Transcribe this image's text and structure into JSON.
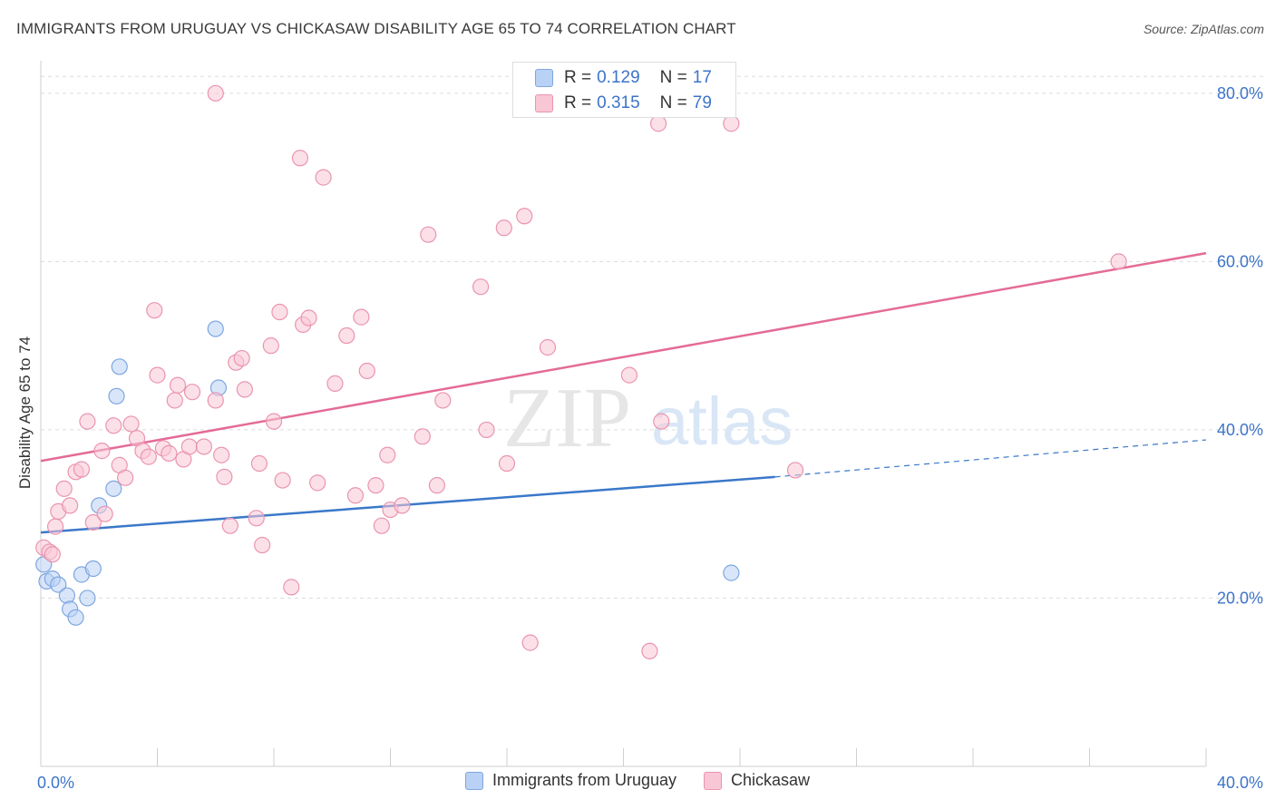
{
  "title": "IMMIGRANTS FROM URUGUAY VS CHICKASAW DISABILITY AGE 65 TO 74 CORRELATION CHART",
  "source": "Source: ZipAtlas.com",
  "watermark": {
    "zip": "ZIP",
    "atlas": "atlas"
  },
  "stats": [
    {
      "r_label": "R =",
      "r_value": "0.129",
      "n_label": "N =",
      "n_value": "17",
      "color": "#7ea6e0"
    },
    {
      "r_label": "R =",
      "r_value": "0.315",
      "n_label": "N =",
      "n_value": "79",
      "color": "#ea94b0"
    }
  ],
  "chart_data": {
    "type": "scatter",
    "xlabel": "",
    "ylabel": "Disability Age 65 to 74",
    "xlim": [
      0,
      40
    ],
    "ylim": [
      0,
      83
    ],
    "x_tick_labels": [
      {
        "value": 0,
        "label": "0.0%"
      },
      {
        "value": 40,
        "label": "40.0%"
      }
    ],
    "y_tick_labels": [
      {
        "value": 20,
        "label": "20.0%"
      },
      {
        "value": 40,
        "label": "40.0%"
      },
      {
        "value": 60,
        "label": "60.0%"
      },
      {
        "value": 80,
        "label": "80.0%"
      }
    ],
    "grid": "horizontal dashed",
    "legend_position": "bottom-center",
    "series": [
      {
        "name": "Immigrants from Uruguay",
        "color": "#7ea6e0",
        "fill": "#b9d1f5",
        "points": [
          [
            0.1,
            24.0
          ],
          [
            0.2,
            22.0
          ],
          [
            0.4,
            22.3
          ],
          [
            0.6,
            21.6
          ],
          [
            0.9,
            20.3
          ],
          [
            1.0,
            18.7
          ],
          [
            1.2,
            17.7
          ],
          [
            1.4,
            22.8
          ],
          [
            1.6,
            20.0
          ],
          [
            1.8,
            23.5
          ],
          [
            2.0,
            31.0
          ],
          [
            2.5,
            33.0
          ],
          [
            2.6,
            44.0
          ],
          [
            2.7,
            47.5
          ],
          [
            6.0,
            52.0
          ],
          [
            6.1,
            45.0
          ],
          [
            23.7,
            23.0
          ]
        ],
        "trend": {
          "x0": 0,
          "y0": 27.8,
          "x1": 25.2,
          "y1": 34.4,
          "dashed_to_x": 40,
          "dashed_to_y": 38.8
        }
      },
      {
        "name": "Chickasaw",
        "color": "#ea94b0",
        "fill": "#f9c6d6",
        "points": [
          [
            0.1,
            26.0
          ],
          [
            0.3,
            25.5
          ],
          [
            0.5,
            28.5
          ],
          [
            0.6,
            30.3
          ],
          [
            0.8,
            33.0
          ],
          [
            1.0,
            31.0
          ],
          [
            1.2,
            35.0
          ],
          [
            1.4,
            35.3
          ],
          [
            1.6,
            41.0
          ],
          [
            1.8,
            29.0
          ],
          [
            2.1,
            37.5
          ],
          [
            2.2,
            30.0
          ],
          [
            2.5,
            40.5
          ],
          [
            2.7,
            35.8
          ],
          [
            2.9,
            34.3
          ],
          [
            3.1,
            40.7
          ],
          [
            3.3,
            39.0
          ],
          [
            3.5,
            37.5
          ],
          [
            3.7,
            36.8
          ],
          [
            3.9,
            54.2
          ],
          [
            4.0,
            46.5
          ],
          [
            4.2,
            37.8
          ],
          [
            4.4,
            37.2
          ],
          [
            4.6,
            43.5
          ],
          [
            4.7,
            45.3
          ],
          [
            4.9,
            36.5
          ],
          [
            5.1,
            38.0
          ],
          [
            5.2,
            44.5
          ],
          [
            5.6,
            38.0
          ],
          [
            6.0,
            43.5
          ],
          [
            6.2,
            37.0
          ],
          [
            6.3,
            34.4
          ],
          [
            6.5,
            28.6
          ],
          [
            6.7,
            48.0
          ],
          [
            6.9,
            48.5
          ],
          [
            7.0,
            44.8
          ],
          [
            7.4,
            29.5
          ],
          [
            7.5,
            36.0
          ],
          [
            7.6,
            26.3
          ],
          [
            7.9,
            50.0
          ],
          [
            8.0,
            41.0
          ],
          [
            8.2,
            54.0
          ],
          [
            8.3,
            34.0
          ],
          [
            8.6,
            21.3
          ],
          [
            8.9,
            72.3
          ],
          [
            9.0,
            52.5
          ],
          [
            9.2,
            53.3
          ],
          [
            9.5,
            33.7
          ],
          [
            9.7,
            70.0
          ],
          [
            10.1,
            45.5
          ],
          [
            10.5,
            51.2
          ],
          [
            10.8,
            32.2
          ],
          [
            11.0,
            53.4
          ],
          [
            11.2,
            47.0
          ],
          [
            11.5,
            33.4
          ],
          [
            11.7,
            28.6
          ],
          [
            11.9,
            37.0
          ],
          [
            12.0,
            30.5
          ],
          [
            12.4,
            31.0
          ],
          [
            13.1,
            39.2
          ],
          [
            13.3,
            63.2
          ],
          [
            13.6,
            33.4
          ],
          [
            13.8,
            43.5
          ],
          [
            15.1,
            57.0
          ],
          [
            15.3,
            40.0
          ],
          [
            15.9,
            64.0
          ],
          [
            16.0,
            36.0
          ],
          [
            16.6,
            65.4
          ],
          [
            16.8,
            14.7
          ],
          [
            17.4,
            49.8
          ],
          [
            20.2,
            46.5
          ],
          [
            20.9,
            13.7
          ],
          [
            21.3,
            41.0
          ],
          [
            21.2,
            76.4
          ],
          [
            23.7,
            76.4
          ],
          [
            25.9,
            35.2
          ],
          [
            37.0,
            60.0
          ],
          [
            6.0,
            80.0
          ],
          [
            0.4,
            25.2
          ]
        ],
        "trend": {
          "x0": 0,
          "y0": 36.3,
          "x1": 40,
          "y1": 61.0
        }
      }
    ]
  }
}
